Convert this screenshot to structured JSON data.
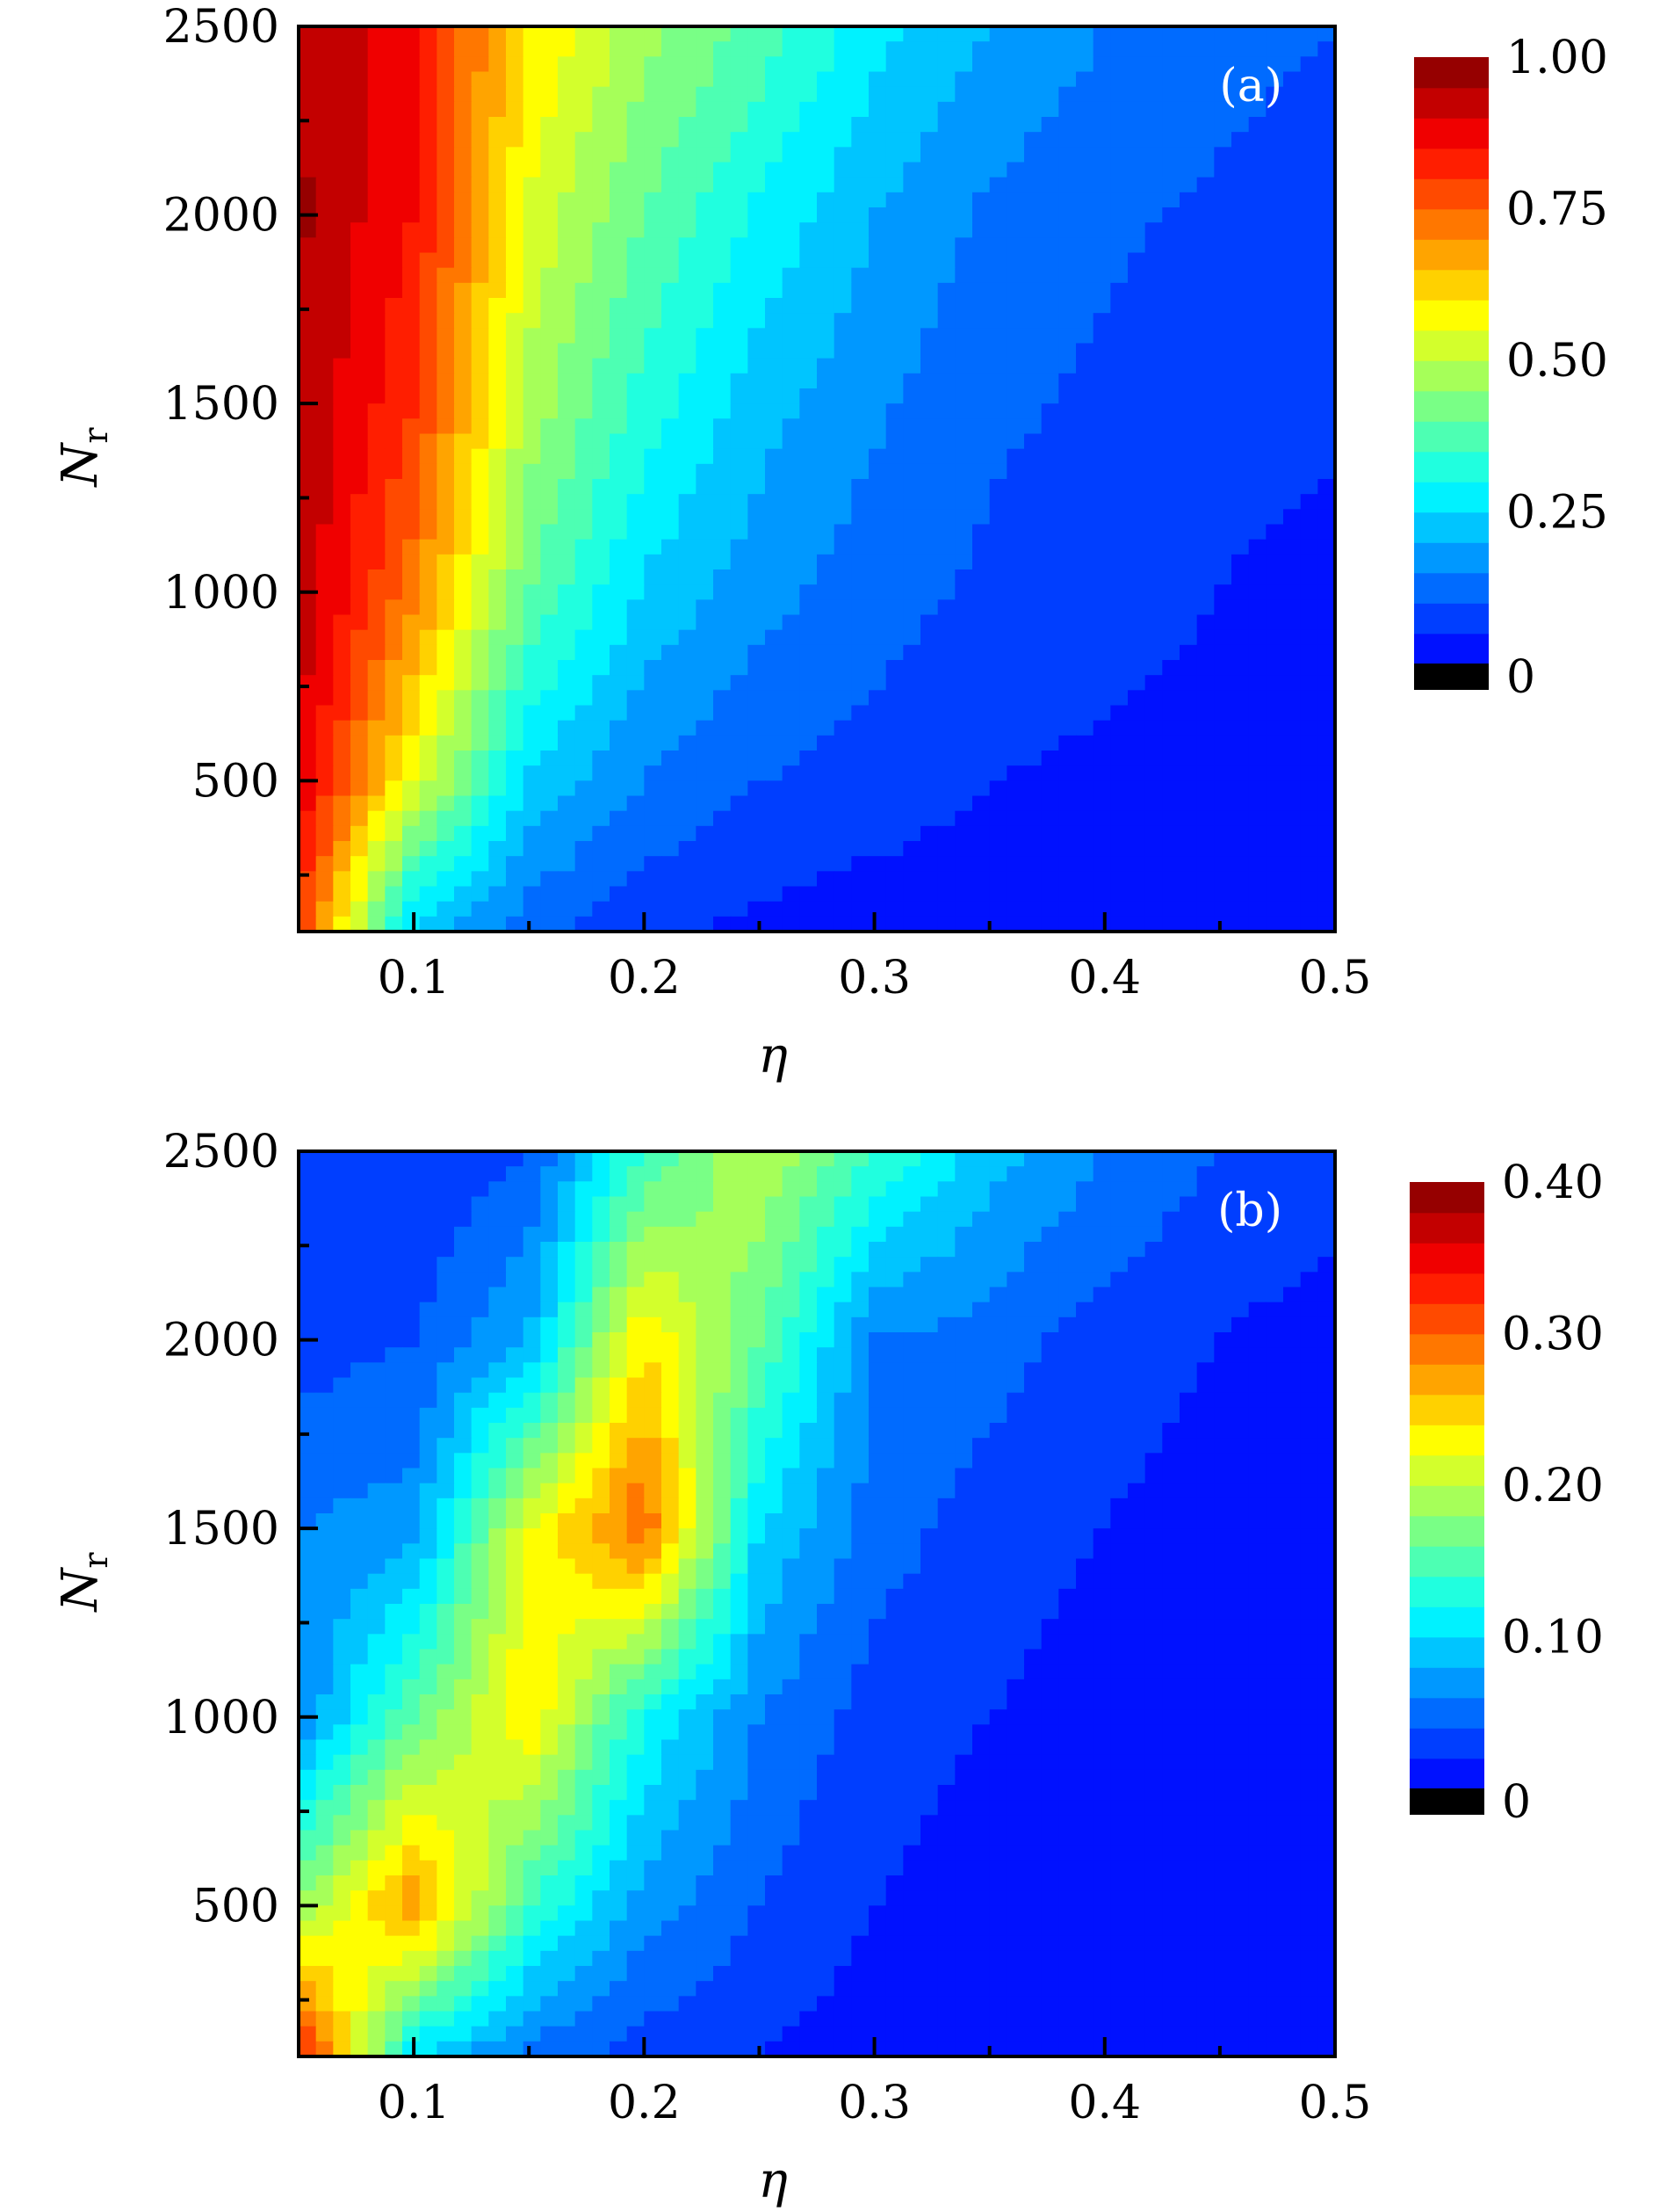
{
  "chart_data": [
    {
      "type": "heatmap",
      "panel_label": "(a)",
      "xlabel": "η",
      "ylabel_main": "N",
      "ylabel_sub": "r",
      "xlim": [
        0.05,
        0.5
      ],
      "ylim": [
        100,
        2500
      ],
      "xticks": [
        0.1,
        0.2,
        0.3,
        0.4,
        0.5
      ],
      "xtick_labels": [
        "0.1",
        "0.2",
        "0.3",
        "0.4",
        "0.5"
      ],
      "yticks": [
        500,
        1000,
        1500,
        2000,
        2500
      ],
      "ytick_labels": [
        "500",
        "1000",
        "1500",
        "2000",
        "2500"
      ],
      "colorbar": {
        "min": 0,
        "max": 1.0,
        "levels": 20,
        "ticks": [
          0,
          0.25,
          0.5,
          0.75,
          1.0
        ],
        "tick_labels": [
          "0",
          "0.25",
          "0.50",
          "0.75",
          "1.00"
        ]
      },
      "x": [
        0.05,
        0.1,
        0.15,
        0.2,
        0.25,
        0.3,
        0.35,
        0.4,
        0.45,
        0.5
      ],
      "y": [
        100,
        500,
        1000,
        1500,
        2000,
        2500
      ],
      "z": [
        [
          0.8,
          0.22,
          0.12,
          0.06,
          0.04,
          0.02,
          0.02,
          0.01,
          0.01,
          0.01
        ],
        [
          0.9,
          0.55,
          0.24,
          0.15,
          0.1,
          0.08,
          0.05,
          0.04,
          0.03,
          0.02
        ],
        [
          0.94,
          0.72,
          0.4,
          0.24,
          0.17,
          0.12,
          0.09,
          0.07,
          0.05,
          0.03
        ],
        [
          0.95,
          0.8,
          0.48,
          0.33,
          0.22,
          0.16,
          0.11,
          0.09,
          0.07,
          0.06
        ],
        [
          0.96,
          0.85,
          0.54,
          0.4,
          0.29,
          0.2,
          0.14,
          0.11,
          0.09,
          0.07
        ],
        [
          0.95,
          0.86,
          0.6,
          0.47,
          0.38,
          0.27,
          0.2,
          0.15,
          0.12,
          0.1
        ]
      ]
    },
    {
      "type": "heatmap",
      "panel_label": "(b)",
      "xlabel": "η",
      "ylabel_main": "N",
      "ylabel_sub": "r",
      "xlim": [
        0.05,
        0.5
      ],
      "ylim": [
        100,
        2500
      ],
      "xticks": [
        0.1,
        0.2,
        0.3,
        0.4,
        0.5
      ],
      "xtick_labels": [
        "0.1",
        "0.2",
        "0.3",
        "0.4",
        "0.5"
      ],
      "yticks": [
        500,
        1000,
        1500,
        2000,
        2500
      ],
      "ytick_labels": [
        "500",
        "1000",
        "1500",
        "2000",
        "2500"
      ],
      "colorbar": {
        "min": 0,
        "max": 0.4,
        "levels": 20,
        "ticks": [
          0,
          0.1,
          0.2,
          0.3,
          0.4
        ],
        "tick_labels": [
          "0",
          "0.10",
          "0.20",
          "0.30",
          "0.40"
        ]
      },
      "x": [
        0.05,
        0.1,
        0.15,
        0.2,
        0.25,
        0.3,
        0.35,
        0.4,
        0.45,
        0.5
      ],
      "y": [
        100,
        500,
        1000,
        1500,
        2000,
        2500
      ],
      "z": [
        [
          0.34,
          0.1,
          0.05,
          0.03,
          0.02,
          0.01,
          0.01,
          0.01,
          0.01,
          0.01
        ],
        [
          0.18,
          0.28,
          0.14,
          0.07,
          0.04,
          0.02,
          0.01,
          0.01,
          0.01,
          0.01
        ],
        [
          0.06,
          0.16,
          0.24,
          0.12,
          0.06,
          0.03,
          0.02,
          0.01,
          0.01,
          0.01
        ],
        [
          0.06,
          0.07,
          0.22,
          0.3,
          0.1,
          0.05,
          0.03,
          0.02,
          0.01,
          0.01
        ],
        [
          0.03,
          0.04,
          0.08,
          0.24,
          0.16,
          0.06,
          0.05,
          0.03,
          0.02,
          0.01
        ],
        [
          0.02,
          0.02,
          0.04,
          0.14,
          0.2,
          0.14,
          0.09,
          0.06,
          0.04,
          0.03
        ]
      ]
    }
  ]
}
